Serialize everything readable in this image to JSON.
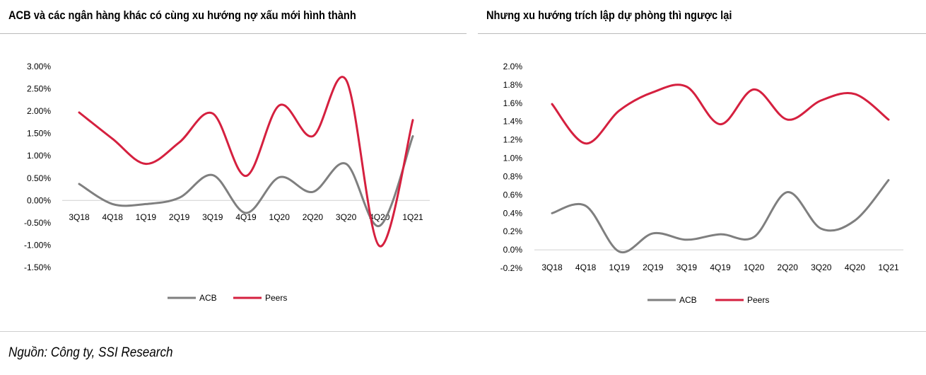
{
  "left_title": "ACB và các ngân hàng khác có cùng xu hướng nợ xấu mới hình thành",
  "right_title": "Nhưng xu hướng trích lập dự phòng thì ngược lại",
  "source": "Nguồn: Công ty, SSI Research",
  "chart_data": [
    {
      "type": "line",
      "title": "ACB và các ngân hàng khác có cùng xu hướng nợ xấu mới hình thành",
      "categories": [
        "3Q18",
        "4Q18",
        "1Q19",
        "2Q19",
        "3Q19",
        "4Q19",
        "1Q20",
        "2Q20",
        "3Q20",
        "4Q20",
        "1Q21"
      ],
      "series": [
        {
          "name": "ACB",
          "color": "#7f7f7f",
          "values": [
            0.37,
            -0.08,
            -0.08,
            0.06,
            0.57,
            -0.28,
            0.52,
            0.19,
            0.82,
            -0.57,
            1.44
          ]
        },
        {
          "name": "Peers",
          "color": "#d5203f",
          "values": [
            1.97,
            1.38,
            0.82,
            1.3,
            1.95,
            0.55,
            2.13,
            1.44,
            2.7,
            -1.02,
            1.8
          ]
        }
      ],
      "ylim": [
        -1.5,
        3.0
      ],
      "yticks": [
        -1.5,
        -1.0,
        -0.5,
        0.0,
        0.5,
        1.0,
        1.5,
        2.0,
        2.5,
        3.0
      ],
      "ytick_labels": [
        "-1.50%",
        "-1.00%",
        "-0.50%",
        "0.00%",
        "0.50%",
        "1.00%",
        "1.50%",
        "2.00%",
        "2.50%",
        "3.00%"
      ],
      "xlabel": "",
      "ylabel": "",
      "legend": "bottom",
      "grid": false,
      "smooth": true
    },
    {
      "type": "line",
      "title": "Nhưng xu hướng trích lập dự phòng thì ngược lại",
      "categories": [
        "3Q18",
        "4Q18",
        "1Q19",
        "2Q19",
        "3Q19",
        "4Q19",
        "1Q20",
        "2Q20",
        "3Q20",
        "4Q20",
        "1Q21"
      ],
      "series": [
        {
          "name": "ACB",
          "color": "#7f7f7f",
          "values": [
            0.4,
            0.48,
            -0.02,
            0.18,
            0.11,
            0.17,
            0.14,
            0.63,
            0.23,
            0.32,
            0.76
          ]
        },
        {
          "name": "Peers",
          "color": "#d5203f",
          "values": [
            1.59,
            1.16,
            1.52,
            1.72,
            1.78,
            1.37,
            1.75,
            1.42,
            1.63,
            1.7,
            1.42
          ]
        }
      ],
      "ylim": [
        -0.2,
        2.0
      ],
      "yticks": [
        -0.2,
        0.0,
        0.2,
        0.4,
        0.6,
        0.8,
        1.0,
        1.2,
        1.4,
        1.6,
        1.8,
        2.0
      ],
      "ytick_labels": [
        "-0.2%",
        "0.0%",
        "0.2%",
        "0.4%",
        "0.6%",
        "0.8%",
        "1.0%",
        "1.2%",
        "1.4%",
        "1.6%",
        "1.8%",
        "2.0%"
      ],
      "xlabel": "",
      "ylabel": "",
      "legend": "bottom",
      "grid": false,
      "smooth": true
    }
  ]
}
